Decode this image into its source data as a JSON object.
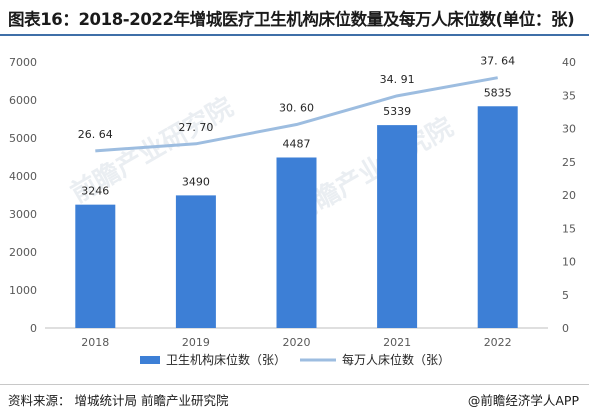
{
  "header": {
    "title": "图表16：2018-2022年增城医疗卫生机构床位数量及每万人床位数(单位：张)"
  },
  "footer": {
    "source": "资料来源：  增城统计局 前瞻产业研究院",
    "brand": "@前瞻经济学人APP"
  },
  "watermark": {
    "text": "前瞻产业研究院"
  },
  "chart_data": {
    "type": "bar",
    "categories": [
      "2018",
      "2019",
      "2020",
      "2021",
      "2022"
    ],
    "series": [
      {
        "name": "卫生机构床位数（张）",
        "kind": "bar",
        "axis": "left",
        "values": [
          3246,
          3490,
          4487,
          5339,
          5835
        ],
        "labels": [
          "3246",
          "3490",
          "4487",
          "5339",
          "5835"
        ],
        "color": "#3d7fd6"
      },
      {
        "name": "每万人床位数（张）",
        "kind": "line",
        "axis": "right",
        "values": [
          26.64,
          27.7,
          30.6,
          34.91,
          37.64
        ],
        "labels": [
          "26. 64",
          "27. 70",
          "30. 60",
          "34. 91",
          "37. 64"
        ],
        "color": "#9dbde0"
      }
    ],
    "y_left": {
      "range": [
        0,
        7000
      ],
      "ticks": [
        "0",
        "1000",
        "2000",
        "3000",
        "4000",
        "5000",
        "6000",
        "7000"
      ]
    },
    "y_right": {
      "range": [
        0,
        40
      ],
      "ticks": [
        "0",
        "5",
        "10",
        "15",
        "20",
        "25",
        "30",
        "35",
        "40"
      ]
    },
    "grid": false,
    "legend": "bottom"
  }
}
